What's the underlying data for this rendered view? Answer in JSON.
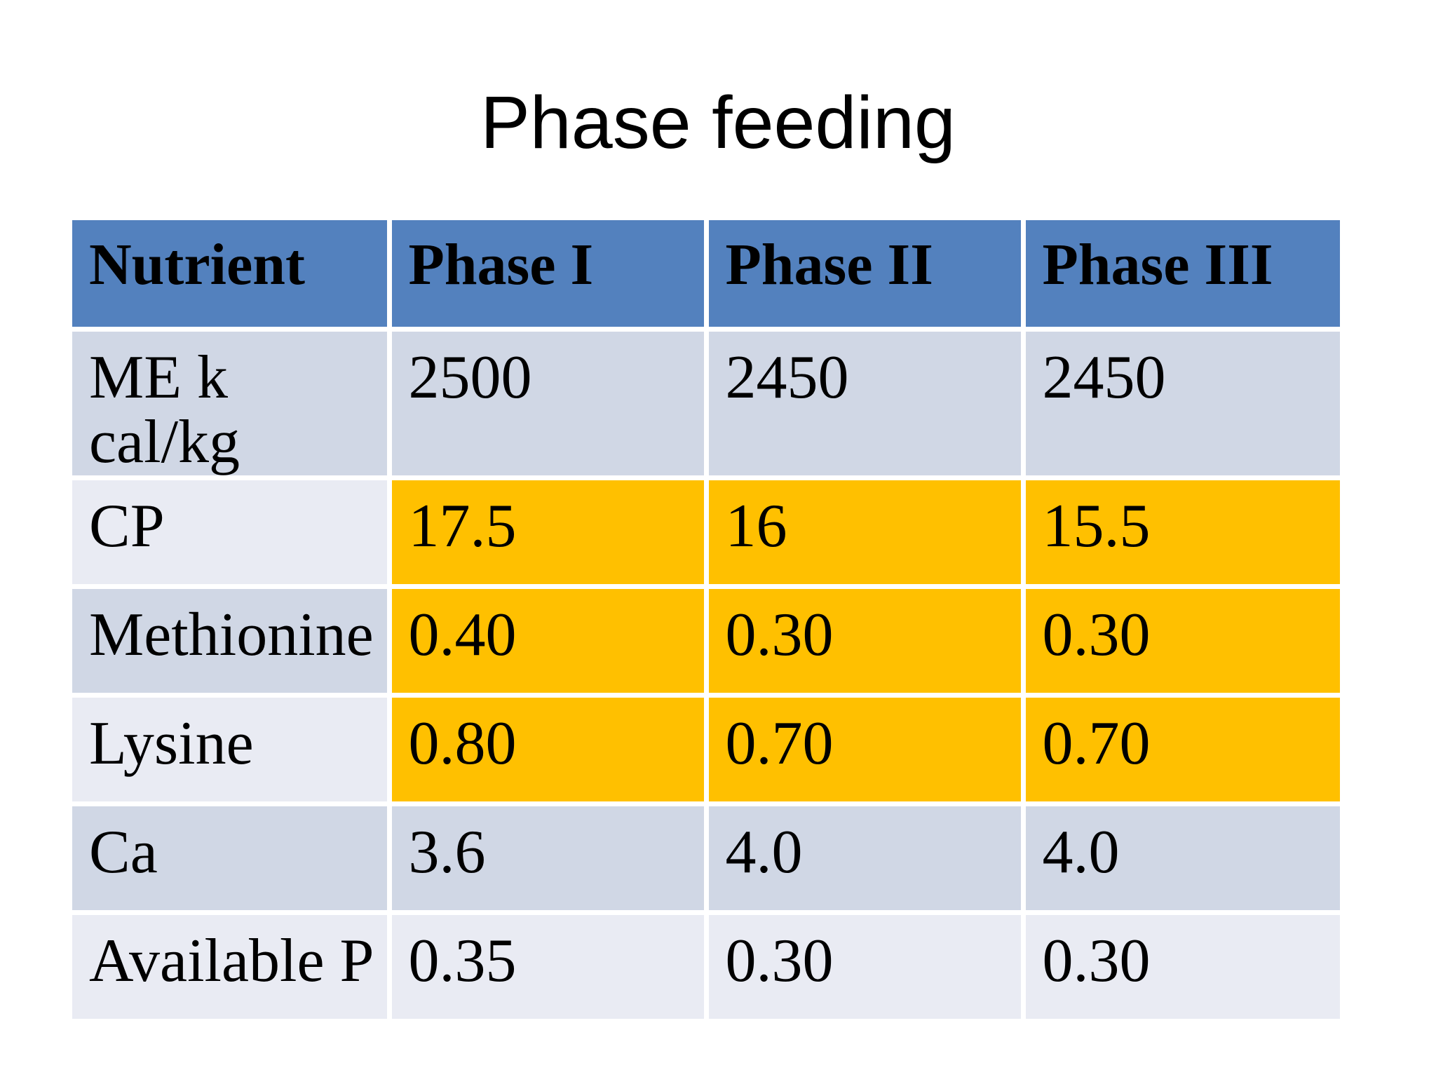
{
  "title": "Phase feeding",
  "table": {
    "columns": [
      "Nutrient",
      "Phase I",
      "Phase II",
      "Phase III"
    ],
    "rows": [
      {
        "nutrient": "ME k cal/kg",
        "values": [
          "2500",
          "2450",
          "2450"
        ],
        "highlighted": false
      },
      {
        "nutrient": "CP",
        "values": [
          "17.5",
          "16",
          "15.5"
        ],
        "highlighted": true
      },
      {
        "nutrient": "Methionine",
        "values": [
          "0.40",
          "0.30",
          "0.30"
        ],
        "highlighted": true
      },
      {
        "nutrient": "Lysine",
        "values": [
          "0.80",
          "0.70",
          "0.70"
        ],
        "highlighted": true
      },
      {
        "nutrient": "Ca",
        "values": [
          "3.6",
          "4.0",
          "4.0"
        ],
        "highlighted": false
      },
      {
        "nutrient": "Available P",
        "values": [
          "0.35",
          "0.30",
          "0.30"
        ],
        "highlighted": false
      }
    ]
  },
  "colors": {
    "header_background": "#5381BE",
    "row_band_dark": "#D0D7E5",
    "row_band_light": "#E9EBF3",
    "highlight_cell": "#FFC000",
    "cell_border": "#FFFFFF",
    "text": "#000000",
    "page_background": "#FFFFFF"
  },
  "chart_data": {
    "type": "table",
    "title": "Phase feeding",
    "columns": [
      "Nutrient",
      "Phase I",
      "Phase II",
      "Phase III"
    ],
    "rows": [
      [
        "ME k cal/kg",
        2500,
        2450,
        2450
      ],
      [
        "CP",
        17.5,
        16,
        15.5
      ],
      [
        "Methionine",
        0.4,
        0.3,
        0.3
      ],
      [
        "Lysine",
        0.8,
        0.7,
        0.7
      ],
      [
        "Ca",
        3.6,
        4.0,
        4.0
      ],
      [
        "Available P",
        0.35,
        0.3,
        0.3
      ]
    ],
    "highlighted_rows": [
      "CP",
      "Methionine",
      "Lysine"
    ]
  }
}
